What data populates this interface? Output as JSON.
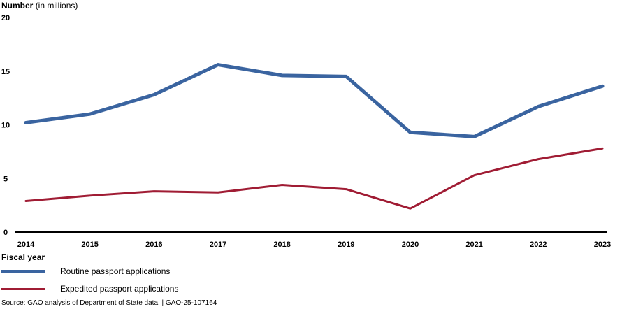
{
  "chart_data": {
    "type": "line",
    "ylabel_bold": "Number",
    "ylabel_rest": "(in millions)",
    "xlabel": "Fiscal year",
    "ylim": [
      0,
      20
    ],
    "yticks": [
      "0",
      "5",
      "10",
      "15",
      "20"
    ],
    "categories": [
      "2014",
      "2015",
      "2016",
      "2017",
      "2018",
      "2019",
      "2020",
      "2021",
      "2022",
      "2023"
    ],
    "grid": false,
    "legend_placement": "bottom-left",
    "series": [
      {
        "name": "Routine passport applications",
        "color": "#3a64a0",
        "values": [
          10.2,
          11.0,
          12.8,
          15.6,
          14.6,
          14.5,
          9.3,
          8.9,
          11.7,
          13.6
        ]
      },
      {
        "name": "Expedited passport applications",
        "color": "#a01c34",
        "values": [
          2.9,
          3.4,
          3.8,
          3.7,
          4.4,
          4.0,
          2.2,
          5.3,
          6.8,
          7.8
        ]
      }
    ]
  },
  "source": "Source: GAO analysis of Department of State data.  |  GAO-25-107164"
}
